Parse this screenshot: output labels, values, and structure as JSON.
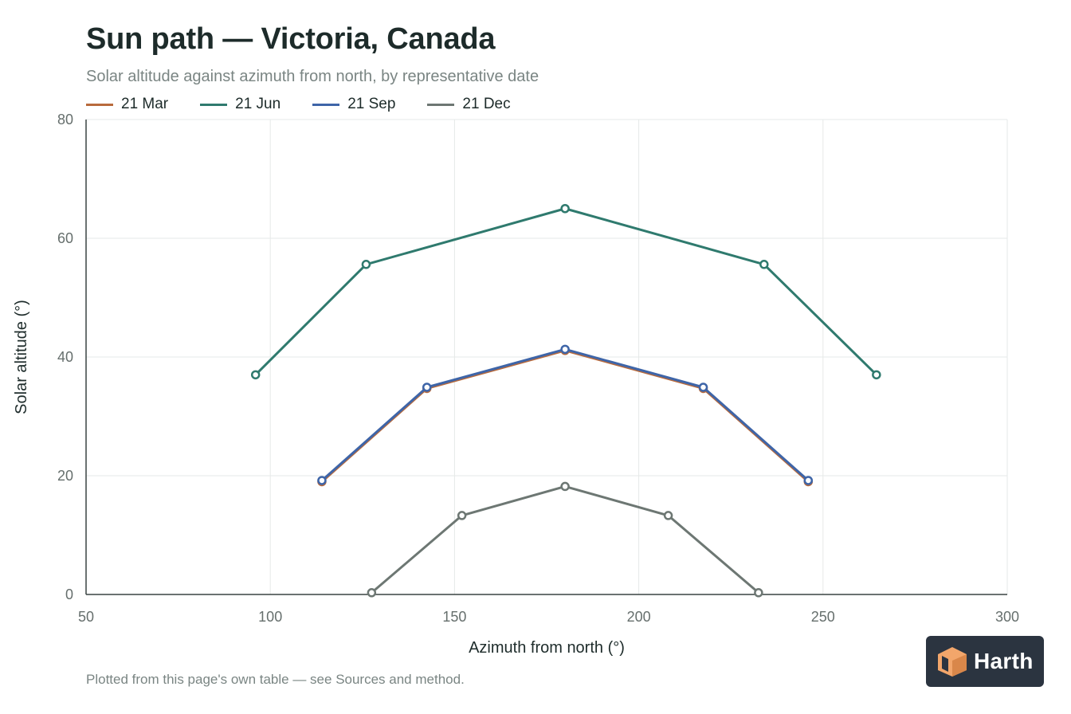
{
  "header": {
    "title": "Sun path — Victoria, Canada",
    "subtitle": "Solar altitude against azimuth from north, by representative date"
  },
  "footer": {
    "note": "Plotted from this page's own table — see Sources and method."
  },
  "brand": {
    "name": "Harth",
    "icon": "harth-cube-logo",
    "colors": {
      "badge": "#2b3440",
      "mark": "#f2a66b",
      "mark_dark": "#d9874a"
    }
  },
  "colors": {
    "grid": "#e6e9e8",
    "axis": "#3a4442"
  },
  "chart_data": {
    "type": "line",
    "title": "Sun path — Victoria, Canada",
    "subtitle": "Solar altitude against azimuth from north, by representative date",
    "xlabel": "Azimuth from north (°)",
    "ylabel": "Solar altitude (°)",
    "xlim": [
      50,
      300
    ],
    "ylim": [
      0,
      80
    ],
    "xticks": [
      50,
      100,
      150,
      200,
      250,
      300
    ],
    "yticks": [
      0,
      20,
      40,
      60,
      80
    ],
    "grid": true,
    "legend_position": "top-left",
    "series": [
      {
        "name": "21 Mar",
        "color": "#b86a3c",
        "x": [
          114,
          142.5,
          180,
          217.5,
          246
        ],
        "y": [
          19,
          34.7,
          41.1,
          34.7,
          19
        ]
      },
      {
        "name": "21 Jun",
        "color": "#2f7a6e",
        "x": [
          96,
          126,
          180,
          234,
          264.5
        ],
        "y": [
          37,
          55.6,
          65,
          55.6,
          37
        ]
      },
      {
        "name": "21 Sep",
        "color": "#3e65a8",
        "x": [
          114,
          142.5,
          180,
          217.5,
          246
        ],
        "y": [
          19.2,
          34.9,
          41.3,
          34.9,
          19.2
        ]
      },
      {
        "name": "21 Dec",
        "color": "#6d7773",
        "x": [
          127.5,
          152,
          180,
          208,
          232.5
        ],
        "y": [
          0.3,
          13.3,
          18.2,
          13.3,
          0.3
        ]
      }
    ]
  }
}
